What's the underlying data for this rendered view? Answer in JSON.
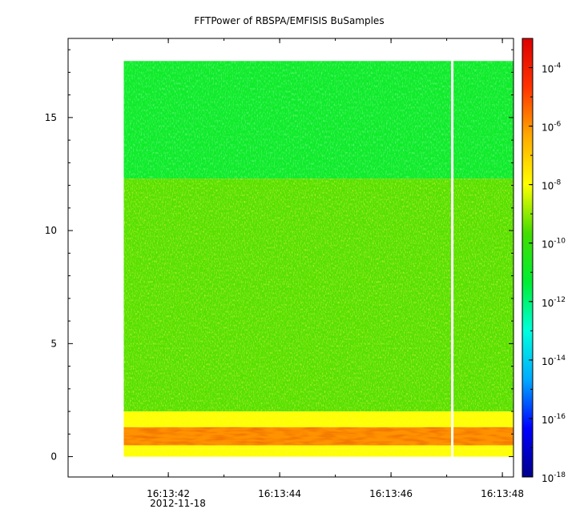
{
  "chart_data": {
    "type": "heatmap",
    "title": "FFTPower of RBSPA/EMFISIS  BuSamples",
    "xlabel": "",
    "ylabel": "",
    "x_tick_labels": [
      "16:13:42",
      "16:13:44",
      "16:13:46",
      "16:13:48"
    ],
    "x_date_label": "2012-11-18",
    "x_range": [
      "16:13:40.2",
      "16:13:48.2"
    ],
    "data_time_range": [
      "16:13:41.2",
      "16:13:48.2"
    ],
    "data_gap_time": "16:13:47.1",
    "y_ticks": [
      0,
      5,
      10,
      15
    ],
    "y_range": [
      -0.9,
      18.5
    ],
    "y_data_range": [
      0,
      17.5
    ],
    "colorbar": {
      "scale": "log",
      "range": [
        1e-18,
        0.001
      ],
      "tick_labels": [
        {
          "base": "10",
          "exp": "-4",
          "value": 0.0001
        },
        {
          "base": "10",
          "exp": "-6",
          "value": 1e-06
        },
        {
          "base": "10",
          "exp": "-8",
          "value": 1e-08
        },
        {
          "base": "10",
          "exp": "-10",
          "value": 1e-10
        },
        {
          "base": "10",
          "exp": "-12",
          "value": 1e-12
        },
        {
          "base": "10",
          "exp": "-14",
          "value": 1e-14
        },
        {
          "base": "10",
          "exp": "-16",
          "value": 1e-16
        },
        {
          "base": "10",
          "exp": "-18",
          "value": 1e-18
        }
      ],
      "colormap": [
        "#00008b",
        "#0000ff",
        "#00aaff",
        "#00ffdd",
        "#00ee33",
        "#44dd00",
        "#ffff00",
        "#ffaa00",
        "#ff3300",
        "#dd0000"
      ]
    },
    "bands": [
      {
        "y_from": 12.3,
        "y_to": 17.5,
        "typical_power": 1e-11
      },
      {
        "y_from": 2.0,
        "y_to": 12.3,
        "typical_power": 3e-10
      },
      {
        "y_from": 1.3,
        "y_to": 2.0,
        "typical_power": 1e-08
      },
      {
        "y_from": 0.5,
        "y_to": 1.3,
        "typical_power": 1e-06
      },
      {
        "y_from": 0.35,
        "y_to": 0.5,
        "typical_power": 1e-08
      },
      {
        "y_from": 0.0,
        "y_to": 0.35,
        "typical_power": 1e-08
      }
    ]
  }
}
